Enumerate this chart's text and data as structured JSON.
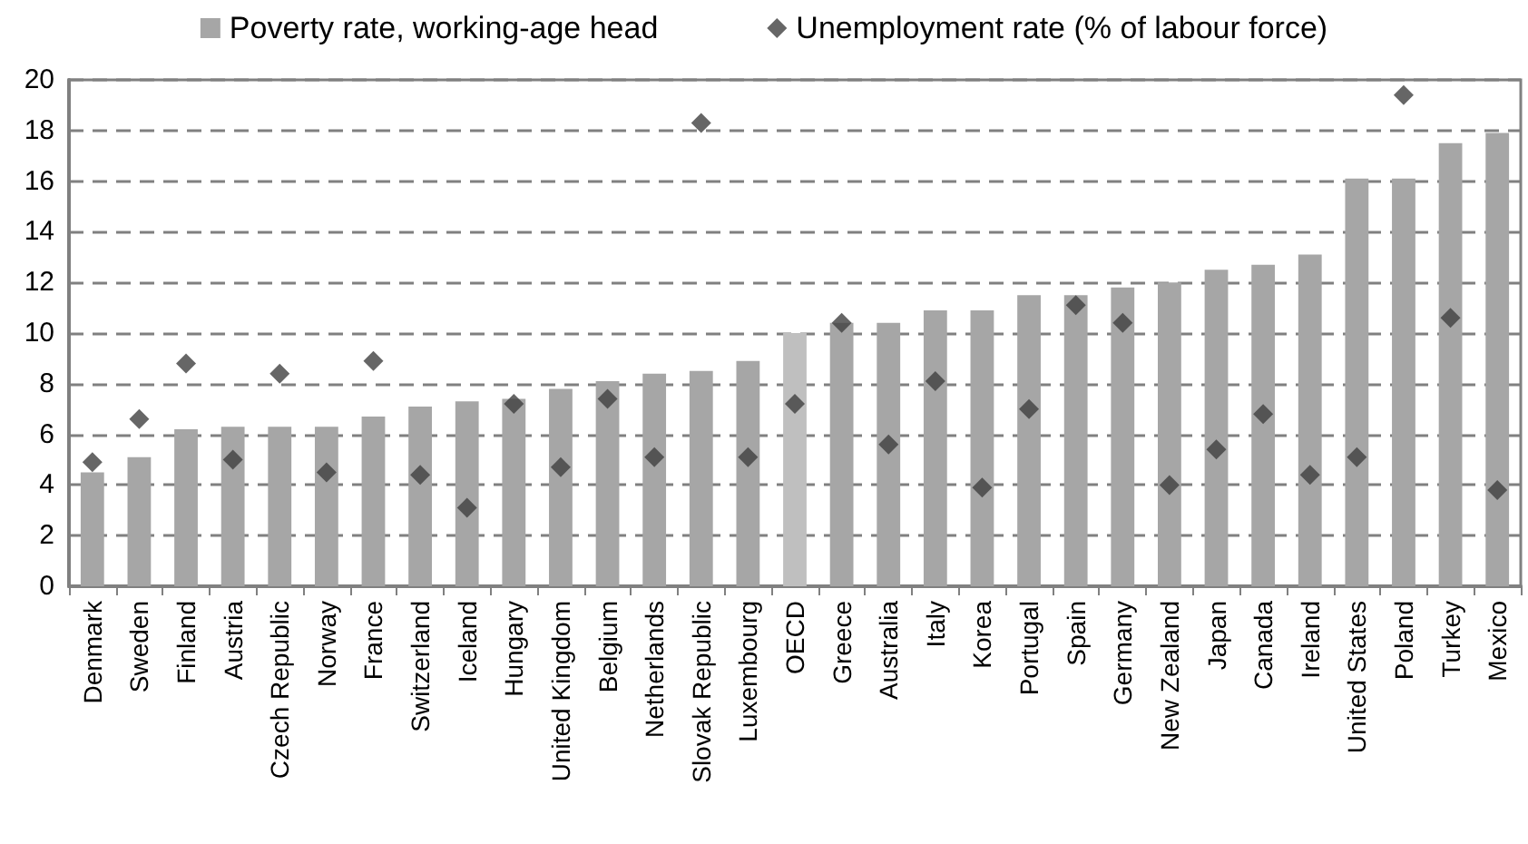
{
  "chart_data": {
    "type": "bar",
    "categories": [
      "Denmark",
      "Sweden",
      "Finland",
      "Austria",
      "Czech Republic",
      "Norway",
      "France",
      "Switzerland",
      "Iceland",
      "Hungary",
      "United Kingdom",
      "Belgium",
      "Netherlands",
      "Slovak Republic",
      "Luxembourg",
      "OECD",
      "Greece",
      "Australia",
      "Italy",
      "Korea",
      "Portugal",
      "Spain",
      "Germany",
      "New Zealand",
      "Japan",
      "Canada",
      "Ireland",
      "United States",
      "Poland",
      "Turkey",
      "Mexico"
    ],
    "series": [
      {
        "name": "Poverty rate, working-age head",
        "color": "#a6a6a6",
        "colors": [
          "#a6a6a6",
          "#a6a6a6",
          "#a6a6a6",
          "#a6a6a6",
          "#a6a6a6",
          "#a6a6a6",
          "#a6a6a6",
          "#a6a6a6",
          "#a6a6a6",
          "#a6a6a6",
          "#a6a6a6",
          "#a6a6a6",
          "#a6a6a6",
          "#a6a6a6",
          "#a6a6a6",
          "#bfbfbf",
          "#a6a6a6",
          "#a6a6a6",
          "#a6a6a6",
          "#a6a6a6",
          "#a6a6a6",
          "#a6a6a6",
          "#a6a6a6",
          "#a6a6a6",
          "#a6a6a6",
          "#a6a6a6",
          "#a6a6a6",
          "#a6a6a6",
          "#a6a6a6",
          "#a6a6a6",
          "#a6a6a6"
        ],
        "values": [
          4.5,
          5.1,
          6.2,
          6.3,
          6.3,
          6.3,
          6.7,
          7.1,
          7.3,
          7.4,
          7.8,
          8.1,
          8.4,
          8.5,
          8.9,
          10.0,
          10.4,
          10.4,
          10.9,
          10.9,
          11.5,
          11.5,
          11.8,
          12.0,
          12.5,
          12.7,
          13.1,
          16.1,
          16.1,
          17.5,
          17.9
        ]
      },
      {
        "name": "Unemployment rate (% of labour force)",
        "type": "scatter",
        "marker": "diamond",
        "color": "#404040",
        "values": [
          4.9,
          6.6,
          8.8,
          5.0,
          8.4,
          4.5,
          8.9,
          4.4,
          3.1,
          7.2,
          4.7,
          7.4,
          5.1,
          18.3,
          5.1,
          7.2,
          10.4,
          5.6,
          8.1,
          3.9,
          7.0,
          11.1,
          10.4,
          4.0,
          5.4,
          6.8,
          4.4,
          5.1,
          19.4,
          10.6,
          3.8
        ]
      }
    ],
    "ylim": [
      0,
      20
    ],
    "yticks": [
      0,
      2,
      4,
      6,
      8,
      10,
      12,
      14,
      16,
      18,
      20
    ],
    "grid": "y",
    "legend": "top"
  }
}
